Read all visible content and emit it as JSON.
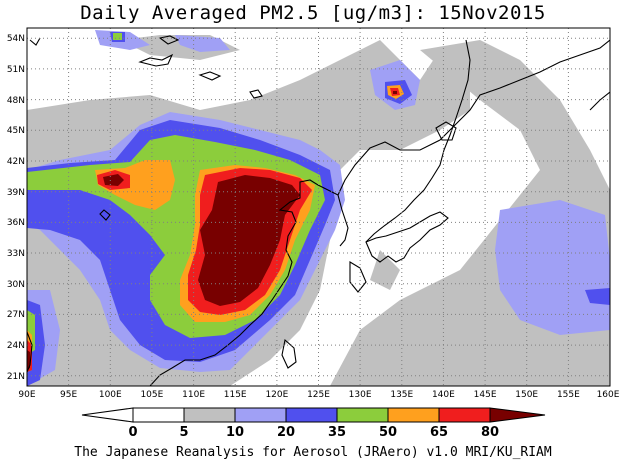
{
  "title": "Daily Averaged PM2.5 [ug/m3]: 15Nov2015",
  "credit": "The Japanese Reanalysis for Aerosol (JRAero) v1.0 MRI/KU_RIAM",
  "map": {
    "lon_range": [
      90,
      160
    ],
    "lat_range": [
      20,
      55
    ],
    "lon_ticks": [
      "90E",
      "95E",
      "100E",
      "105E",
      "110E",
      "115E",
      "120E",
      "125E",
      "130E",
      "135E",
      "140E",
      "145E",
      "150E",
      "155E",
      "160E"
    ],
    "lat_ticks": [
      "21N",
      "24N",
      "27N",
      "30N",
      "33N",
      "36N",
      "39N",
      "42N",
      "45N",
      "48N",
      "51N",
      "54N"
    ],
    "gridlines": "dotted"
  },
  "colorbar": {
    "labels": [
      "0",
      "5",
      "10",
      "20",
      "35",
      "50",
      "65",
      "80"
    ],
    "colors": [
      "#ffffff",
      "#c0c0c0",
      "#a0a0f5",
      "#5050ee",
      "#8ccd3c",
      "#ffa01e",
      "#f01e1e",
      "#780000"
    ]
  }
}
